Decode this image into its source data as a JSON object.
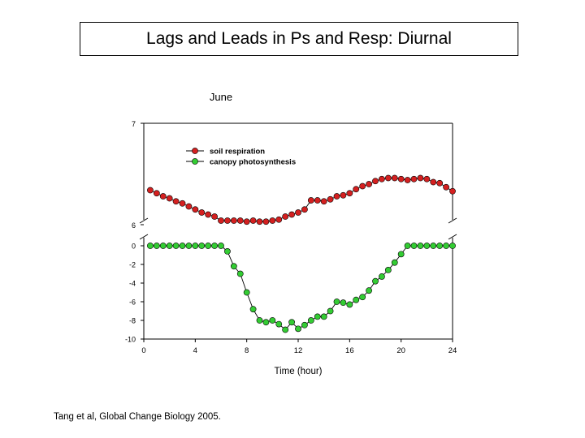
{
  "slide": {
    "title": "Lags and Leads in Ps and Resp: Diurnal",
    "citation": "Tang et al, Global Change Biology 2005."
  },
  "chart_data": {
    "type": "line",
    "title": "June",
    "xlabel": "Time (hour)",
    "ylabel": "",
    "xlim": [
      0,
      24
    ],
    "xticks": [
      0,
      4,
      8,
      12,
      16,
      20,
      24
    ],
    "upper_panel": {
      "ylim": [
        6,
        7
      ],
      "yticks": [
        6,
        7
      ]
    },
    "lower_panel": {
      "ylim": [
        -10,
        0
      ],
      "yticks": [
        0,
        -2,
        -4,
        -6,
        -8,
        -10
      ]
    },
    "grid": false,
    "legend": "top-left inside plot",
    "series": [
      {
        "name": "soil respiration",
        "panel": "upper",
        "color": "#d42020",
        "x": [
          0.5,
          1,
          1.5,
          2,
          2.5,
          3,
          3.5,
          4,
          4.5,
          5,
          5.5,
          6,
          6.5,
          7,
          7.5,
          8,
          8.5,
          9,
          9.5,
          10,
          10.5,
          11,
          11.5,
          12,
          12.5,
          13,
          13.5,
          14,
          14.5,
          15,
          15.5,
          16,
          16.5,
          17,
          17.5,
          18,
          18.5,
          19,
          19.5,
          20,
          20.5,
          21,
          21.5,
          22,
          22.5,
          23,
          23.5,
          24
        ],
        "values": [
          6.34,
          6.31,
          6.28,
          6.26,
          6.23,
          6.21,
          6.18,
          6.15,
          6.12,
          6.1,
          6.08,
          6.04,
          6.04,
          6.04,
          6.04,
          6.03,
          6.04,
          6.03,
          6.03,
          6.04,
          6.05,
          6.08,
          6.1,
          6.12,
          6.15,
          6.24,
          6.24,
          6.23,
          6.25,
          6.28,
          6.29,
          6.31,
          6.35,
          6.38,
          6.4,
          6.43,
          6.45,
          6.46,
          6.46,
          6.45,
          6.44,
          6.45,
          6.46,
          6.45,
          6.42,
          6.41,
          6.37,
          6.33
        ]
      },
      {
        "name": "canopy photosynthesis",
        "panel": "lower",
        "color": "#33cc33",
        "x": [
          0.5,
          1,
          1.5,
          2,
          2.5,
          3,
          3.5,
          4,
          4.5,
          5,
          5.5,
          6,
          6.5,
          7,
          7.5,
          8,
          8.5,
          9,
          9.5,
          10,
          10.5,
          11,
          11.5,
          12,
          12.5,
          13,
          13.5,
          14,
          14.5,
          15,
          15.5,
          16,
          16.5,
          17,
          17.5,
          18,
          18.5,
          19,
          19.5,
          20,
          20.5,
          21,
          21.5,
          22,
          22.5,
          23,
          23.5,
          24
        ],
        "values": [
          0,
          0,
          0,
          0,
          0,
          0,
          0,
          0,
          0,
          0,
          0,
          0,
          -0.6,
          -2.2,
          -3.0,
          -5.0,
          -6.8,
          -8.0,
          -8.2,
          -8.0,
          -8.4,
          -9.0,
          -8.2,
          -8.9,
          -8.5,
          -8.0,
          -7.6,
          -7.6,
          -7.0,
          -6.0,
          -6.1,
          -6.3,
          -5.8,
          -5.5,
          -4.8,
          -3.8,
          -3.3,
          -2.6,
          -1.8,
          -0.9,
          0,
          0,
          0,
          0,
          0,
          0,
          0,
          0
        ]
      }
    ]
  }
}
